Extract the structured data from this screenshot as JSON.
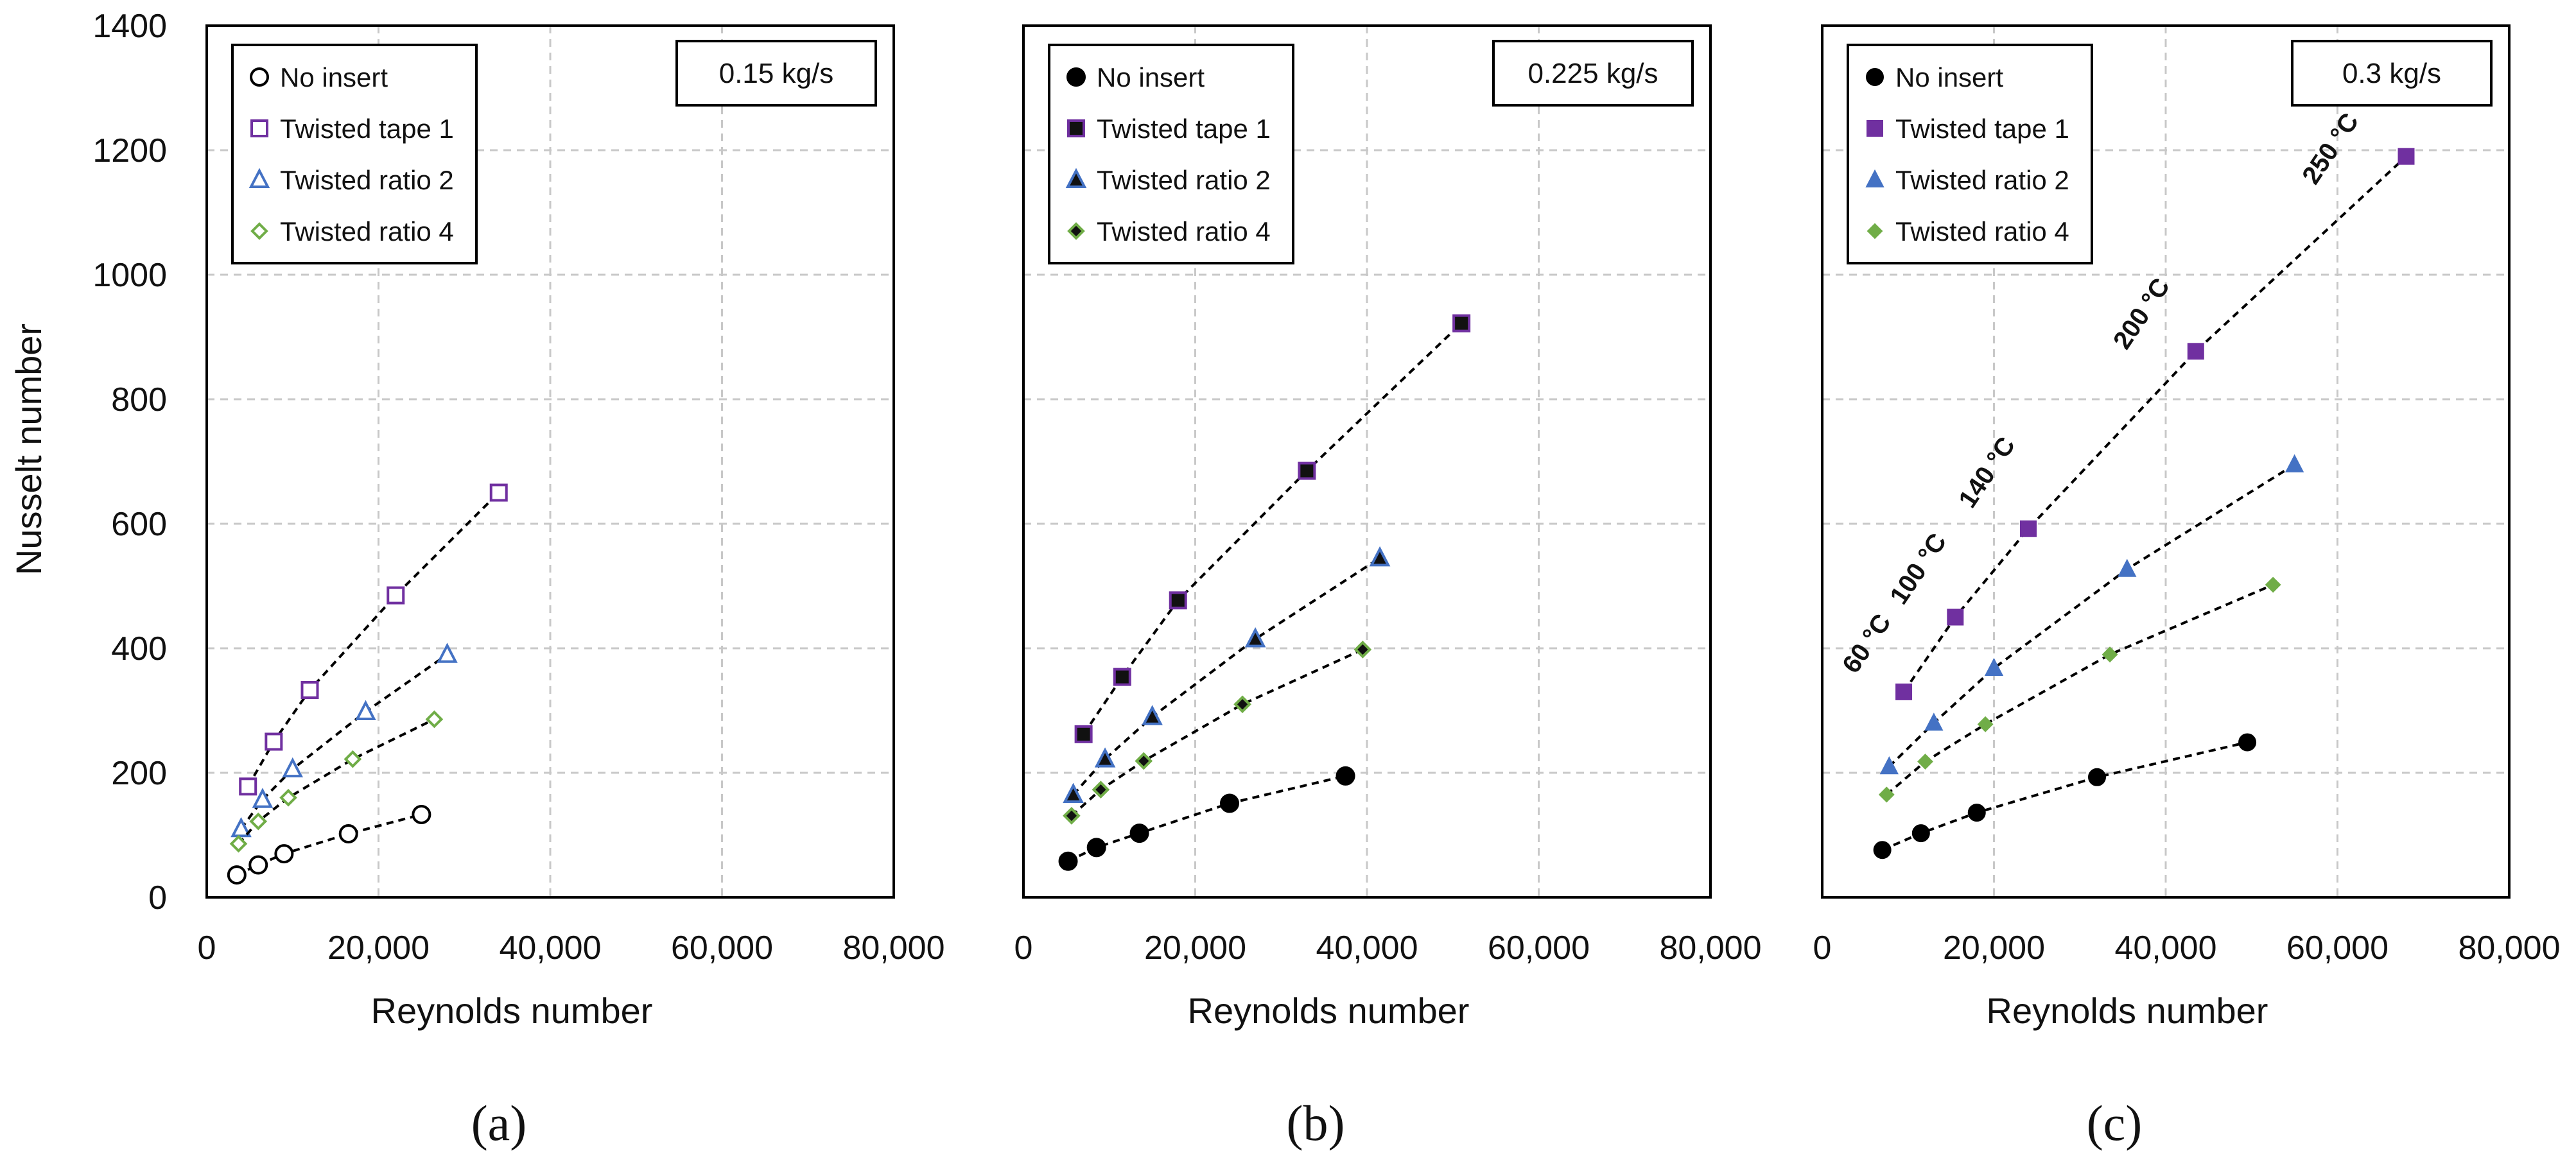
{
  "colors": {
    "no_insert": "#000000",
    "twisted_tape_1": "#7030A0",
    "twisted_ratio_2": "#4472C4",
    "twisted_ratio_4": "#70AD47",
    "grid": "#c8c8c8"
  },
  "y_axis_title": "Nusselt number",
  "chart_data": [
    {
      "type": "scatter",
      "panel_label": "(a)",
      "flow_rate_label": "0.15 kg/s",
      "xlabel": "Reynolds number",
      "ylabel": "Nusselt number",
      "xlim": [
        0,
        80000
      ],
      "ylim": [
        0,
        1400
      ],
      "xticks": [
        0,
        20000,
        40000,
        60000,
        80000
      ],
      "xtick_labels": [
        "0",
        "20,000",
        "40,000",
        "60,000",
        "80,000"
      ],
      "yticks": [
        0,
        200,
        400,
        600,
        800,
        1000,
        1200,
        1400
      ],
      "ytick_labels": [
        "0",
        "200",
        "400",
        "600",
        "800",
        "1000",
        "1200",
        "1400"
      ],
      "grid": true,
      "legend_position": "top-left",
      "marker_fill": "hollow",
      "series": [
        {
          "name": "No insert",
          "key": "no_insert",
          "marker": "circle",
          "x": [
            3500,
            6000,
            9000,
            16500,
            25000
          ],
          "y": [
            36,
            52,
            70,
            102,
            133
          ]
        },
        {
          "name": "Twisted tape 1",
          "key": "twisted_tape_1",
          "marker": "square",
          "x": [
            4800,
            7800,
            12000,
            22000,
            34000
          ],
          "y": [
            178,
            250,
            333,
            485,
            650
          ]
        },
        {
          "name": "Twisted ratio 2",
          "key": "twisted_ratio_2",
          "marker": "triangle",
          "x": [
            4000,
            6500,
            10000,
            18500,
            28000
          ],
          "y": [
            110,
            157,
            206,
            298,
            390
          ]
        },
        {
          "name": "Twisted ratio 4",
          "key": "twisted_ratio_4",
          "marker": "diamond",
          "x": [
            3700,
            6000,
            9500,
            17000,
            26500
          ],
          "y": [
            86,
            122,
            160,
            222,
            286
          ]
        }
      ],
      "annotations": []
    },
    {
      "type": "scatter",
      "panel_label": "(b)",
      "flow_rate_label": "0.225 kg/s",
      "xlabel": "Reynolds number",
      "ylabel": "Nusselt number",
      "xlim": [
        0,
        80000
      ],
      "ylim": [
        0,
        1400
      ],
      "xticks": [
        0,
        20000,
        40000,
        60000,
        80000
      ],
      "xtick_labels": [
        "0",
        "20,000",
        "40,000",
        "60,000",
        "80,000"
      ],
      "yticks": [
        0,
        200,
        400,
        600,
        800,
        1000,
        1200,
        1400
      ],
      "grid": true,
      "legend_position": "top-left",
      "marker_fill": "solid-dark",
      "series": [
        {
          "name": "No insert",
          "key": "no_insert",
          "marker": "circle",
          "x": [
            5200,
            8500,
            13500,
            24000,
            37500
          ],
          "y": [
            58,
            80,
            103,
            151,
            195
          ]
        },
        {
          "name": "Twisted tape 1",
          "key": "twisted_tape_1",
          "marker": "square",
          "x": [
            7000,
            11500,
            18000,
            33000,
            51000
          ],
          "y": [
            262,
            354,
            477,
            685,
            922
          ]
        },
        {
          "name": "Twisted ratio 2",
          "key": "twisted_ratio_2",
          "marker": "triangle",
          "x": [
            5800,
            9500,
            15000,
            27000,
            41500
          ],
          "y": [
            165,
            222,
            290,
            415,
            545
          ]
        },
        {
          "name": "Twisted ratio 4",
          "key": "twisted_ratio_4",
          "marker": "diamond",
          "x": [
            5600,
            9000,
            14000,
            25500,
            39500
          ],
          "y": [
            131,
            173,
            219,
            310,
            398
          ]
        }
      ],
      "annotations": []
    },
    {
      "type": "scatter",
      "panel_label": "(c)",
      "flow_rate_label": "0.3 kg/s",
      "xlabel": "Reynolds number",
      "ylabel": "Nusselt number",
      "xlim": [
        0,
        80000
      ],
      "ylim": [
        0,
        1400
      ],
      "xticks": [
        0,
        20000,
        40000,
        60000,
        80000
      ],
      "xtick_labels": [
        "0",
        "20,000",
        "40,000",
        "60,000",
        "80,000"
      ],
      "yticks": [
        0,
        200,
        400,
        600,
        800,
        1000,
        1200,
        1400
      ],
      "grid": true,
      "legend_position": "top-left",
      "marker_fill": "solid-color",
      "series": [
        {
          "name": "No insert",
          "key": "no_insert",
          "marker": "circle",
          "x": [
            7000,
            11500,
            18000,
            32000,
            49500
          ],
          "y": [
            76,
            103,
            136,
            193,
            249
          ]
        },
        {
          "name": "Twisted tape 1",
          "key": "twisted_tape_1",
          "marker": "square",
          "x": [
            9500,
            15500,
            24000,
            43500,
            68000
          ],
          "y": [
            330,
            450,
            592,
            877,
            1190
          ]
        },
        {
          "name": "Twisted ratio 2",
          "key": "twisted_ratio_2",
          "marker": "triangle",
          "x": [
            7800,
            13000,
            20000,
            35500,
            55000
          ],
          "y": [
            210,
            280,
            368,
            527,
            695
          ]
        },
        {
          "name": "Twisted ratio 4",
          "key": "twisted_ratio_4",
          "marker": "diamond",
          "x": [
            7500,
            12000,
            19000,
            33500,
            52500
          ],
          "y": [
            165,
            218,
            278,
            390,
            502
          ]
        }
      ],
      "annotations": [
        {
          "text": "60 °C",
          "x": 6000,
          "y": 400
        },
        {
          "text": "100 °C",
          "x": 12000,
          "y": 520
        },
        {
          "text": "140 °C",
          "x": 20000,
          "y": 675
        },
        {
          "text": "200 °C",
          "x": 38000,
          "y": 930
        },
        {
          "text": "250 °C",
          "x": 60000,
          "y": 1195
        }
      ]
    }
  ]
}
